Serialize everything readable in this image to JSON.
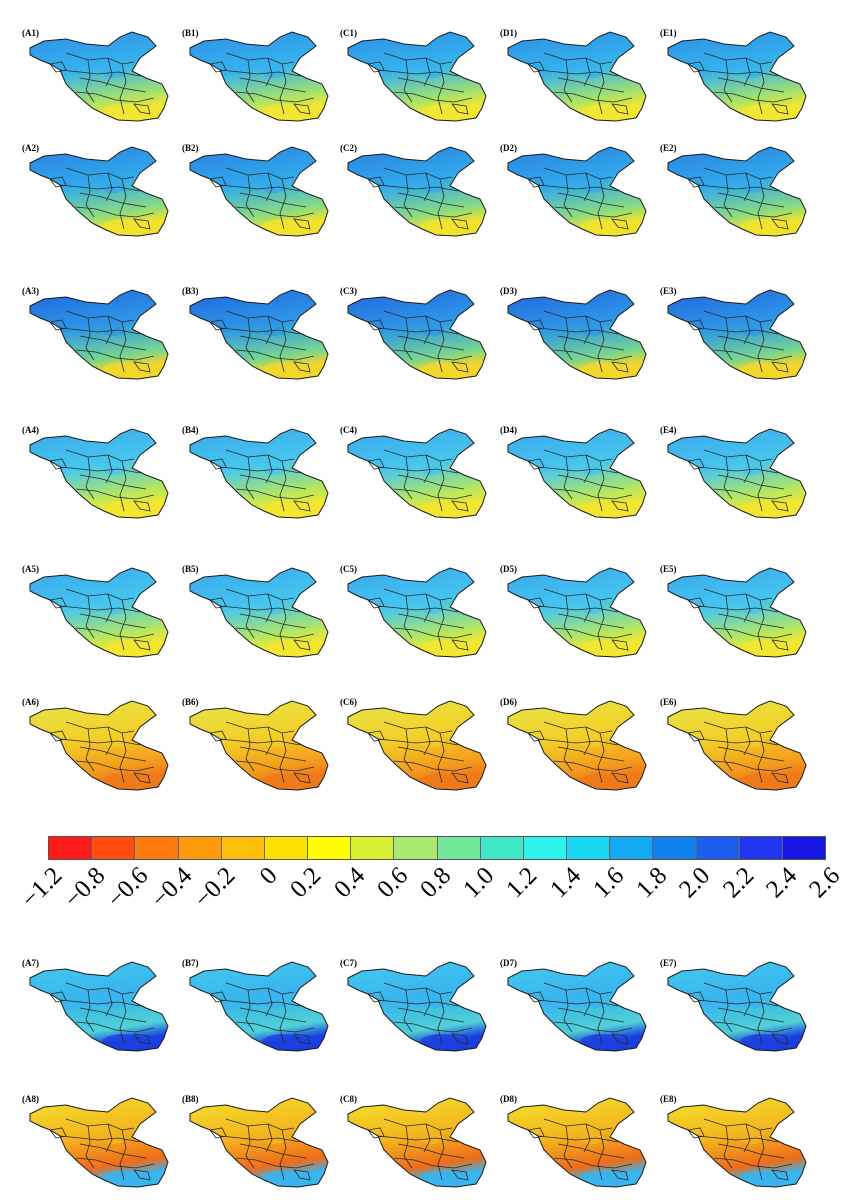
{
  "rows": [
    [
      "(A1)",
      "(B1)",
      "(C1)",
      "(D1)",
      "(E1)"
    ],
    [
      "(A2)",
      "(B2)",
      "(C2)",
      "(D2)",
      "(E2)"
    ],
    [
      "(A3)",
      "(B3)",
      "(C3)",
      "(D3)",
      "(E3)"
    ],
    [
      "(A4)",
      "(B4)",
      "(C4)",
      "(D4)",
      "(E4)"
    ],
    [
      "(A5)",
      "(B5)",
      "(C5)",
      "(D5)",
      "(E5)"
    ],
    [
      "(A6)",
      "(B6)",
      "(C6)",
      "(D6)",
      "(E6)"
    ],
    [
      "(A7)",
      "(B7)",
      "(C7)",
      "(D7)",
      "(E7)"
    ],
    [
      "(A8)",
      "(B8)",
      "(C8)",
      "(D8)",
      "(E8)"
    ]
  ],
  "row_palettes": [
    {
      "north": "#2f8fe6",
      "center": "#35b3ee",
      "south": "#a8e36a",
      "spot": "#f2e632"
    },
    {
      "north": "#2b7fe0",
      "center": "#31acec",
      "south": "#8edc7e",
      "spot": "#f4e22a"
    },
    {
      "north": "#2266dc",
      "center": "#2d98e8",
      "south": "#78d68e",
      "spot": "#f5d72c"
    },
    {
      "north": "#3aa8ee",
      "center": "#46c7ef",
      "south": "#b9e85c",
      "spot": "#f2e630"
    },
    {
      "north": "#39a7ee",
      "center": "#45c6ef",
      "south": "#b4e761",
      "spot": "#f2e630"
    },
    {
      "north": "#e7e64a",
      "center": "#f3cf28",
      "south": "#f59a1c",
      "spot": "#ee7a1a"
    },
    {
      "north": "#45c9ef",
      "center": "#38b4ee",
      "south": "#4fd1d6",
      "spot": "#1a3fe0"
    },
    {
      "north": "#f2e22a",
      "center": "#f4b51f",
      "south": "#ef6c19",
      "spot": "#38b4ee"
    }
  ],
  "colorbar": {
    "colors": [
      "#ff1a1a",
      "#ff4d0d",
      "#ff7a0d",
      "#ff9a0a",
      "#ffbf0a",
      "#ffe000",
      "#ffff00",
      "#d7f233",
      "#a8ea6e",
      "#73e89a",
      "#3fe8c9",
      "#2ef2ee",
      "#18d8f5",
      "#12aaf3",
      "#127fef",
      "#1a5ff0",
      "#2036ef",
      "#1515e6"
    ],
    "ticks": [
      "−1.2",
      "−0.8",
      "−0.6",
      "−0.4",
      "−0.2",
      "0",
      "0.2",
      "0.4",
      "0.6",
      "0.8",
      "1.0",
      "1.2",
      "1.4",
      "1.6",
      "1.8",
      "2.0",
      "2.2",
      "2.4",
      "2.6"
    ]
  }
}
